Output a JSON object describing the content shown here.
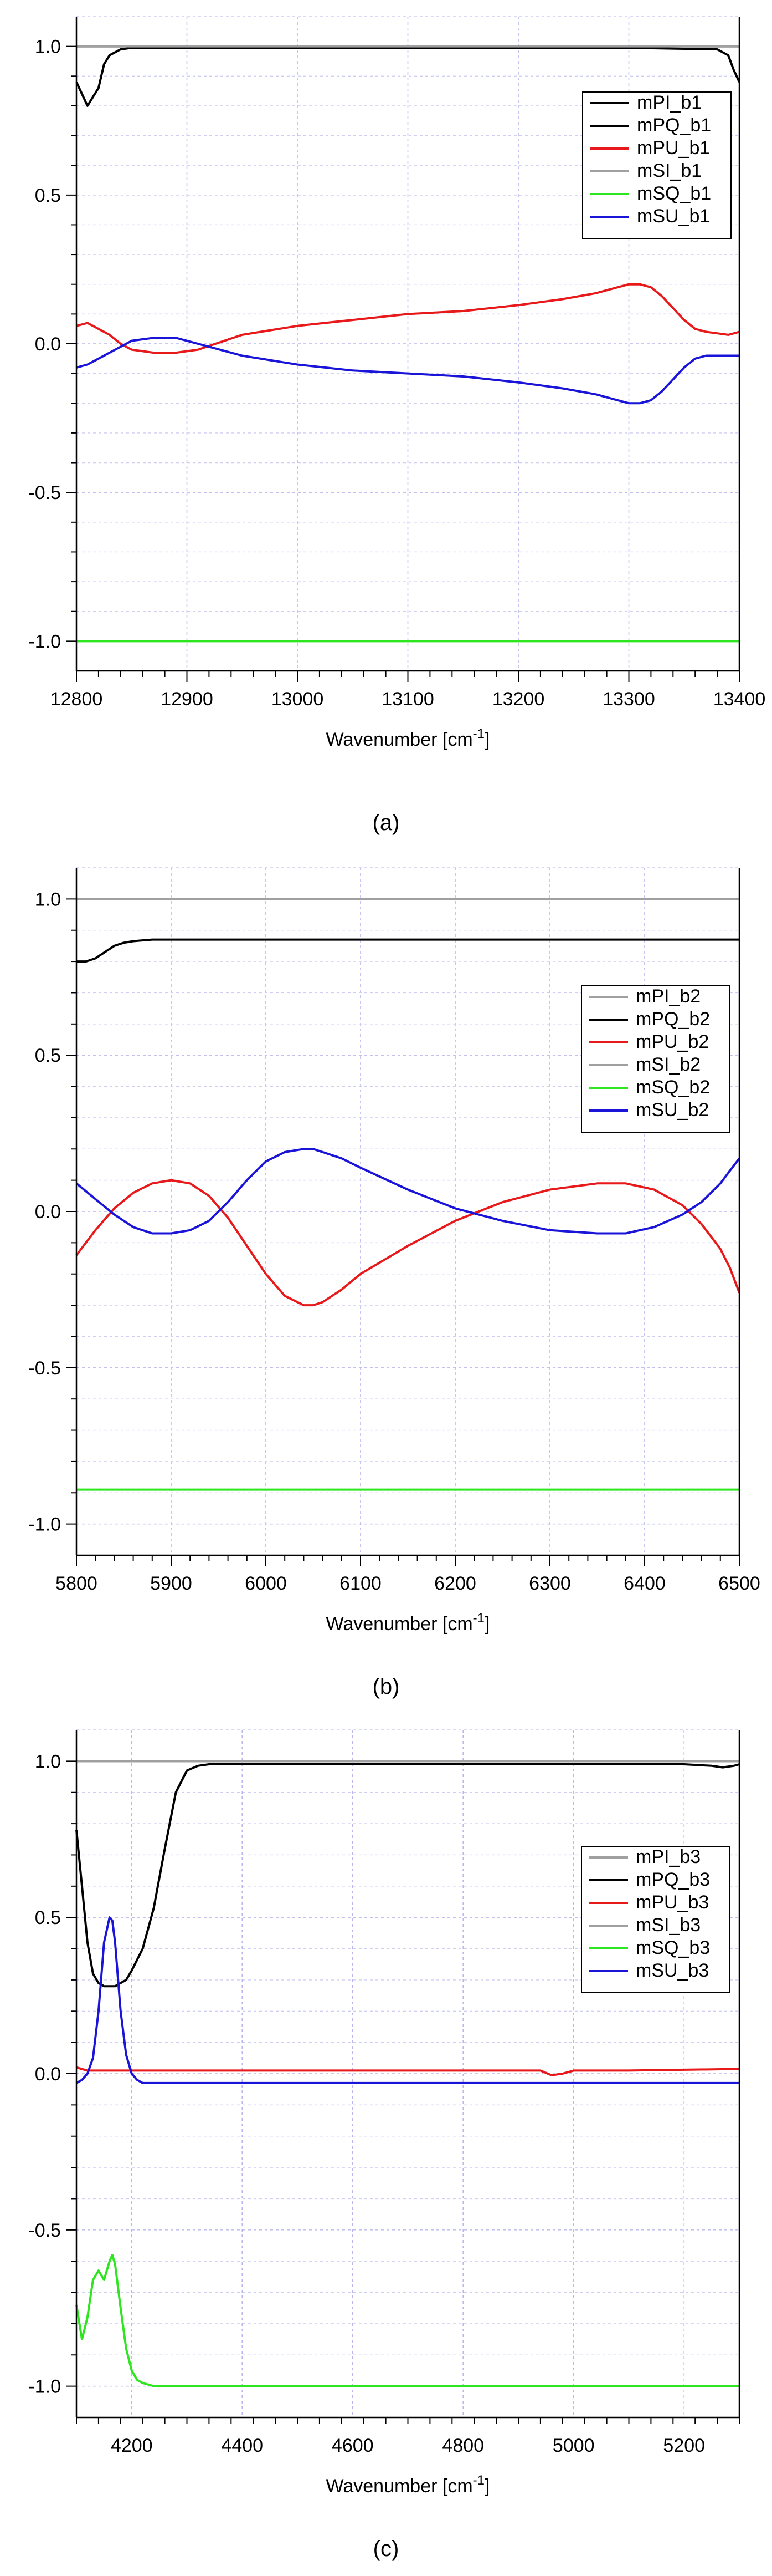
{
  "chart_data": [
    {
      "type": "line",
      "caption": "(a)",
      "xlabel": "Wavenumber [cm",
      "xlabel_sup": "-1",
      "xlabel_end": "]",
      "xlim": [
        12800,
        13400
      ],
      "ylim": [
        -1.1,
        1.1
      ],
      "xticks": [
        12800,
        12900,
        13000,
        13100,
        13200,
        13300,
        13400
      ],
      "xtick_labels": [
        "12800",
        "12900",
        "13000",
        "13100",
        "13200",
        "13300",
        "13400"
      ],
      "yticks": [
        -1.0,
        -0.5,
        0.0,
        0.5,
        1.0
      ],
      "ytick_labels": [
        "-1.0",
        "-0.5",
        "0.0",
        "0.5",
        "1.0"
      ],
      "grid": true,
      "legend": "top-right",
      "series": [
        {
          "name": "mPI_b1",
          "color": "#000000",
          "x": [
            12800,
            13400
          ],
          "y": [
            1.0,
            1.0
          ]
        },
        {
          "name": "mPQ_b1",
          "color": "#000000",
          "x": [
            12800,
            12805,
            12810,
            12815,
            12820,
            12825,
            12830,
            12840,
            12850,
            12900,
            13000,
            13100,
            13200,
            13300,
            13380,
            13390,
            13395,
            13400
          ],
          "y": [
            0.88,
            0.84,
            0.8,
            0.83,
            0.86,
            0.94,
            0.97,
            0.99,
            0.995,
            0.995,
            0.995,
            0.995,
            0.995,
            0.995,
            0.99,
            0.97,
            0.92,
            0.88
          ]
        },
        {
          "name": "mPU_b1",
          "color": "#e8191a",
          "x": [
            12800,
            12810,
            12820,
            12830,
            12840,
            12850,
            12870,
            12890,
            12910,
            12950,
            13000,
            13050,
            13100,
            13150,
            13200,
            13240,
            13270,
            13290,
            13300,
            13310,
            13320,
            13330,
            13340,
            13350,
            13360,
            13370,
            13380,
            13390,
            13400
          ],
          "y": [
            0.06,
            0.07,
            0.05,
            0.03,
            0.0,
            -0.02,
            -0.03,
            -0.03,
            -0.02,
            0.03,
            0.06,
            0.08,
            0.1,
            0.11,
            0.13,
            0.15,
            0.17,
            0.19,
            0.2,
            0.2,
            0.19,
            0.16,
            0.12,
            0.08,
            0.05,
            0.04,
            0.035,
            0.03,
            0.04
          ]
        },
        {
          "name": "mSI_b1",
          "color": "#a0a0a0",
          "x": [
            12800,
            13400
          ],
          "y": [
            1.0,
            1.0
          ]
        },
        {
          "name": "mSQ_b1",
          "color": "#2ee61f",
          "x": [
            12800,
            13400
          ],
          "y": [
            -1.0,
            -1.0
          ]
        },
        {
          "name": "mSU_b1",
          "color": "#1a14d9",
          "x": [
            12800,
            12810,
            12820,
            12830,
            12840,
            12850,
            12870,
            12890,
            12910,
            12950,
            13000,
            13050,
            13100,
            13150,
            13200,
            13240,
            13270,
            13290,
            13300,
            13310,
            13320,
            13330,
            13340,
            13350,
            13360,
            13370,
            13380,
            13390,
            13400
          ],
          "y": [
            -0.08,
            -0.07,
            -0.05,
            -0.03,
            -0.01,
            0.01,
            0.02,
            0.02,
            0.0,
            -0.04,
            -0.07,
            -0.09,
            -0.1,
            -0.11,
            -0.13,
            -0.15,
            -0.17,
            -0.19,
            -0.2,
            -0.2,
            -0.19,
            -0.16,
            -0.12,
            -0.08,
            -0.05,
            -0.04,
            -0.04,
            -0.04,
            -0.04
          ]
        }
      ]
    },
    {
      "type": "line",
      "caption": "(b)",
      "xlabel": "Wavenumber [cm",
      "xlabel_sup": "-1",
      "xlabel_end": "]",
      "xlim": [
        5800,
        6500
      ],
      "ylim": [
        -1.1,
        1.1
      ],
      "xticks": [
        5800,
        5900,
        6000,
        6100,
        6200,
        6300,
        6400,
        6500
      ],
      "xtick_labels": [
        "5800",
        "5900",
        "6000",
        "6100",
        "6200",
        "6300",
        "6400",
        "6500"
      ],
      "yticks": [
        -1.0,
        -0.5,
        0.0,
        0.5,
        1.0
      ],
      "ytick_labels": [
        "-1.0",
        "-0.5",
        "0.0",
        "0.5",
        "1.0"
      ],
      "grid": true,
      "legend": "top-right",
      "series": [
        {
          "name": "mPI_b2",
          "color": "#a0a0a0",
          "x": [
            5800,
            6500
          ],
          "y": [
            1.0,
            1.0
          ]
        },
        {
          "name": "mPQ_b2",
          "color": "#000000",
          "x": [
            5800,
            5810,
            5820,
            5830,
            5840,
            5850,
            5860,
            5880,
            5900,
            6500
          ],
          "y": [
            0.8,
            0.8,
            0.81,
            0.83,
            0.85,
            0.86,
            0.865,
            0.87,
            0.87,
            0.87
          ]
        },
        {
          "name": "mPU_b2",
          "color": "#e8191a",
          "x": [
            5800,
            5820,
            5840,
            5860,
            5880,
            5900,
            5920,
            5940,
            5960,
            5980,
            6000,
            6020,
            6040,
            6050,
            6060,
            6080,
            6100,
            6150,
            6200,
            6250,
            6300,
            6350,
            6380,
            6410,
            6440,
            6460,
            6480,
            6490,
            6500
          ],
          "y": [
            -0.14,
            -0.06,
            0.01,
            0.06,
            0.09,
            0.1,
            0.09,
            0.05,
            -0.02,
            -0.11,
            -0.2,
            -0.27,
            -0.3,
            -0.3,
            -0.29,
            -0.25,
            -0.2,
            -0.11,
            -0.03,
            0.03,
            0.07,
            0.09,
            0.09,
            0.07,
            0.02,
            -0.04,
            -0.12,
            -0.18,
            -0.26
          ]
        },
        {
          "name": "mSI_b2",
          "color": "#a0a0a0",
          "x": [
            5800,
            6500
          ],
          "y": [
            1.0,
            1.0
          ]
        },
        {
          "name": "mSQ_b2",
          "color": "#2ee61f",
          "x": [
            5800,
            6500
          ],
          "y": [
            -0.89,
            -0.89
          ]
        },
        {
          "name": "mSU_b2",
          "color": "#1a14d9",
          "x": [
            5800,
            5820,
            5840,
            5860,
            5880,
            5900,
            5920,
            5940,
            5960,
            5980,
            6000,
            6020,
            6040,
            6050,
            6060,
            6080,
            6100,
            6150,
            6200,
            6250,
            6300,
            6350,
            6380,
            6410,
            6440,
            6460,
            6480,
            6490,
            6500
          ],
          "y": [
            0.09,
            0.04,
            -0.01,
            -0.05,
            -0.07,
            -0.07,
            -0.06,
            -0.03,
            0.03,
            0.1,
            0.16,
            0.19,
            0.2,
            0.2,
            0.19,
            0.17,
            0.14,
            0.07,
            0.01,
            -0.03,
            -0.06,
            -0.07,
            -0.07,
            -0.05,
            -0.01,
            0.03,
            0.09,
            0.13,
            0.17
          ]
        }
      ]
    },
    {
      "type": "line",
      "caption": "(c)",
      "xlabel": "Wavenumber [cm",
      "xlabel_sup": "-1",
      "xlabel_end": "]",
      "xlim": [
        4100,
        5300
      ],
      "ylim": [
        -1.1,
        1.1
      ],
      "xticks": [
        4200,
        4400,
        4600,
        4800,
        5000,
        5200
      ],
      "xtick_labels": [
        "4200",
        "4400",
        "4600",
        "4800",
        "5000",
        "5200"
      ],
      "yticks": [
        -1.0,
        -0.5,
        0.0,
        0.5,
        1.0
      ],
      "ytick_labels": [
        "-1.0",
        "-0.5",
        "0.0",
        "0.5",
        "1.0"
      ],
      "grid": true,
      "legend": "top-right",
      "series": [
        {
          "name": "mPI_b3",
          "color": "#a0a0a0",
          "x": [
            4100,
            5300
          ],
          "y": [
            1.0,
            1.0
          ]
        },
        {
          "name": "mPQ_b3",
          "color": "#000000",
          "x": [
            4100,
            4110,
            4120,
            4130,
            4140,
            4150,
            4160,
            4170,
            4180,
            4190,
            4200,
            4220,
            4240,
            4260,
            4280,
            4300,
            4320,
            4340,
            4400,
            5000,
            5200,
            5250,
            5270,
            5290,
            5300
          ],
          "y": [
            0.78,
            0.6,
            0.42,
            0.32,
            0.29,
            0.28,
            0.28,
            0.28,
            0.29,
            0.3,
            0.33,
            0.4,
            0.53,
            0.72,
            0.9,
            0.97,
            0.985,
            0.99,
            0.99,
            0.99,
            0.99,
            0.985,
            0.98,
            0.985,
            0.99
          ]
        },
        {
          "name": "mPU_b3",
          "color": "#e8191a",
          "x": [
            4100,
            4120,
            4150,
            4200,
            4600,
            4940,
            4960,
            4980,
            5000,
            5100,
            5300
          ],
          "y": [
            0.02,
            0.01,
            0.01,
            0.01,
            0.01,
            0.01,
            -0.005,
            0.0,
            0.01,
            0.01,
            0.015
          ]
        },
        {
          "name": "mSI_b3",
          "color": "#a0a0a0",
          "x": [
            4100,
            5300
          ],
          "y": [
            1.0,
            1.0
          ]
        },
        {
          "name": "mSQ_b3",
          "color": "#2ee61f",
          "x": [
            4100,
            4110,
            4120,
            4130,
            4140,
            4150,
            4160,
            4165,
            4170,
            4180,
            4190,
            4200,
            4210,
            4220,
            4240,
            4260,
            4300,
            5300
          ],
          "y": [
            -0.74,
            -0.85,
            -0.78,
            -0.66,
            -0.63,
            -0.66,
            -0.6,
            -0.58,
            -0.61,
            -0.75,
            -0.88,
            -0.95,
            -0.98,
            -0.99,
            -1.0,
            -1.0,
            -1.0,
            -1.0
          ]
        },
        {
          "name": "mSU_b3",
          "color": "#1a14d9",
          "x": [
            4100,
            4110,
            4120,
            4130,
            4140,
            4150,
            4160,
            4165,
            4170,
            4180,
            4190,
            4200,
            4210,
            4220,
            4240,
            4300,
            5300
          ],
          "y": [
            -0.03,
            -0.02,
            0.0,
            0.05,
            0.2,
            0.42,
            0.5,
            0.49,
            0.42,
            0.2,
            0.06,
            0.0,
            -0.02,
            -0.03,
            -0.03,
            -0.03,
            -0.03
          ]
        }
      ]
    }
  ]
}
